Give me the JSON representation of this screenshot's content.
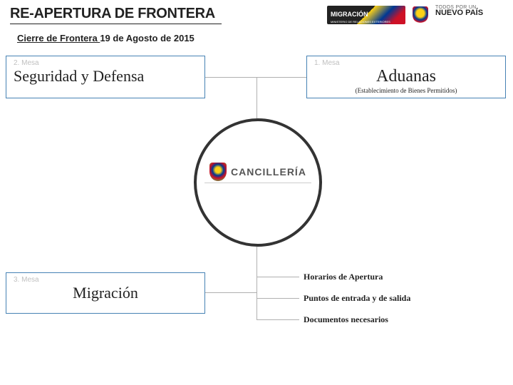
{
  "header": {
    "title": "RE-APERTURA DE FRONTERA",
    "subtitle_underlined": "Cierre de Frontera ",
    "subtitle_rest": "19 de Agosto de 2015",
    "logo_migracion": "MIGRACIÓN",
    "logo_migracion_sub": "MINISTERIO DE RELACIONES EXTERIORES",
    "logo_nuevopais_l1": "TODOS POR UN",
    "logo_nuevopais_l2": "NUEVO PAÍS",
    "logo_nuevopais_l3": "PAZ EQUIDAD EDUCACIÓN"
  },
  "center": {
    "label": "CANCILLERÍA"
  },
  "boxes": {
    "seguridad": {
      "label": "2. Mesa",
      "title": "Seguridad y Defensa"
    },
    "aduanas": {
      "label": "1. Mesa",
      "title": "Aduanas",
      "subtitle": "(Establecimiento de Bienes Permitidos)"
    },
    "migracion": {
      "label": "3. Mesa",
      "title": "Migración"
    }
  },
  "bullets": {
    "b1": "Horarios de Apertura",
    "b2": "Puntos de entrada y de salida",
    "b3": "Documentos necesarios"
  },
  "colors": {
    "box_border": "#4682b4",
    "circle_border": "#333333",
    "connector": "#b0b0b0",
    "text": "#222222",
    "muted_label": "#c0c0c0"
  }
}
